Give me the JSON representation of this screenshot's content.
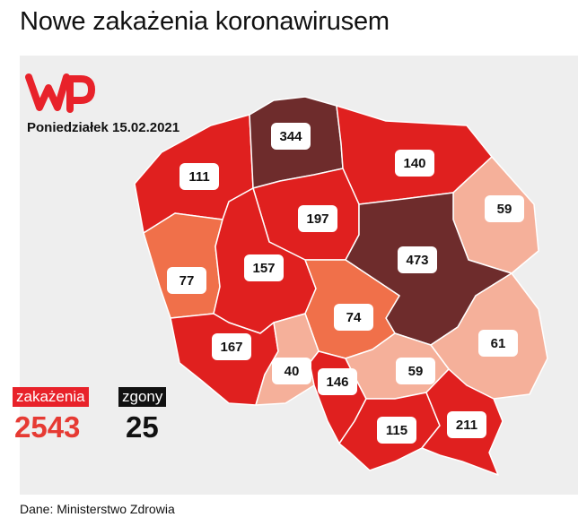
{
  "title": "Nowe zakażenia koronawirusem",
  "date": "Poniedziałek 15.02.2021",
  "colors": {
    "dark": "#6e2c2c",
    "red": "#e0201f",
    "orange": "#f0704a",
    "salmon": "#f5b09a",
    "panel": "#eeeeee"
  },
  "regions": [
    {
      "id": "pomorskie",
      "value": "344",
      "color": "dark"
    },
    {
      "id": "zachodniopomorskie",
      "value": "111",
      "color": "red"
    },
    {
      "id": "warminsko-mazurskie",
      "value": "140",
      "color": "red"
    },
    {
      "id": "podlaskie",
      "value": "59",
      "color": "salmon"
    },
    {
      "id": "kujawsko-pomorskie",
      "value": "197",
      "color": "red"
    },
    {
      "id": "lubuskie",
      "value": "77",
      "color": "orange"
    },
    {
      "id": "wielkopolskie",
      "value": "157",
      "color": "red"
    },
    {
      "id": "mazowieckie",
      "value": "473",
      "color": "dark"
    },
    {
      "id": "lodzkie",
      "value": "74",
      "color": "orange"
    },
    {
      "id": "lubelskie",
      "value": "61",
      "color": "salmon"
    },
    {
      "id": "dolnoslaskie",
      "value": "167",
      "color": "red"
    },
    {
      "id": "opolskie",
      "value": "40",
      "color": "salmon"
    },
    {
      "id": "slaskie",
      "value": "146",
      "color": "red"
    },
    {
      "id": "swietokrzyskie",
      "value": "59",
      "color": "salmon"
    },
    {
      "id": "malopolskie",
      "value": "115",
      "color": "red"
    },
    {
      "id": "podkarpackie",
      "value": "211",
      "color": "red"
    }
  ],
  "stats": {
    "infections_label": "zakażenia",
    "infections_value": "2543",
    "deaths_label": "zgony",
    "deaths_value": "25"
  },
  "source": "Dane: Ministerstwo Zdrowia"
}
